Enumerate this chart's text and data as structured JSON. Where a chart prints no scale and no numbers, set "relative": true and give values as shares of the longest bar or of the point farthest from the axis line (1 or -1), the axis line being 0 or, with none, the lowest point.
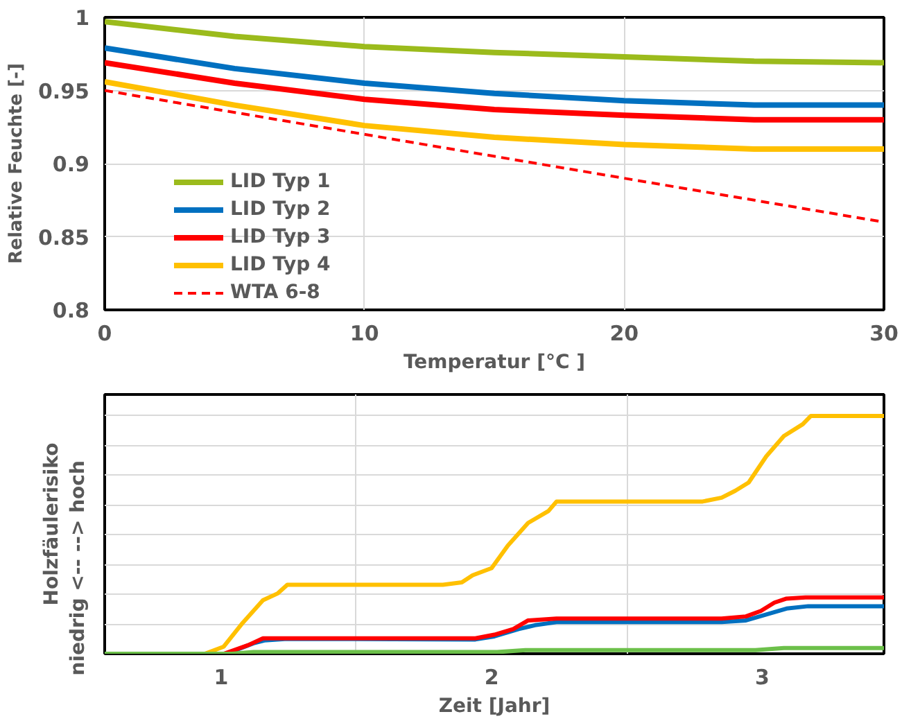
{
  "chart_data": [
    {
      "type": "line",
      "xlabel": "Temperatur [°C ]",
      "ylabel": "Relative Feuchte [-]",
      "xlim": [
        0,
        30
      ],
      "xticks": [
        0,
        10,
        20,
        30
      ],
      "ylim": [
        0.8,
        1
      ],
      "yticks": [
        0.8,
        0.85,
        0.9,
        0.95,
        1
      ],
      "grid": true,
      "legend": "bottom left",
      "x": [
        0,
        5,
        10,
        15,
        20,
        25,
        30
      ],
      "series": [
        {
          "name": "LID Typ 1",
          "color": "#9bbb1c",
          "values": [
            0.997,
            0.987,
            0.98,
            0.976,
            0.973,
            0.97,
            0.969
          ]
        },
        {
          "name": "LID Typ 2",
          "color": "#0070c0",
          "values": [
            0.979,
            0.965,
            0.955,
            0.948,
            0.943,
            0.94,
            0.94
          ]
        },
        {
          "name": "LID Typ 3",
          "color": "#ff0000",
          "values": [
            0.969,
            0.955,
            0.944,
            0.937,
            0.933,
            0.93,
            0.93
          ]
        },
        {
          "name": "LID Typ 4",
          "color": "#ffc000",
          "values": [
            0.956,
            0.94,
            0.926,
            0.918,
            0.913,
            0.91,
            0.91
          ]
        },
        {
          "name": "WTA 6-8",
          "color": "#ff0000",
          "line_style": "dashed",
          "x": [
            0,
            30
          ],
          "values": [
            0.95,
            0.86
          ]
        }
      ]
    },
    {
      "type": "line",
      "xlabel": "Zeit [Jahr]",
      "ylabel": "Holzfäulerisiko\nniedrig <--              --> hoch",
      "relative": true,
      "xlim": [
        0.57,
        3.45
      ],
      "xticks": [
        1,
        2,
        3
      ],
      "tick_labels": "x",
      "grid": true,
      "series": [
        {
          "color": "#ffc000",
          "x": [
            0.57,
            0.94,
            1.01,
            1.08,
            1.155,
            1.21,
            1.245,
            1.82,
            1.89,
            1.93,
            2.0,
            2.06,
            2.135,
            2.21,
            2.24,
            2.78,
            2.85,
            2.9,
            2.95,
            3.015,
            3.08,
            3.15,
            3.18,
            3.45
          ],
          "values": [
            0,
            0,
            0.03,
            0.13,
            0.225,
            0.254,
            0.29,
            0.29,
            0.3,
            0.33,
            0.36,
            0.455,
            0.55,
            0.6,
            0.64,
            0.64,
            0.656,
            0.685,
            0.72,
            0.83,
            0.915,
            0.965,
            1,
            1
          ]
        },
        {
          "color": "#0070c0",
          "x": [
            0.57,
            1.02,
            1.12,
            1.16,
            1.245,
            1.94,
            2.01,
            2.1,
            2.16,
            2.24,
            2.85,
            2.94,
            3.015,
            3.09,
            3.17,
            3.45
          ],
          "values": [
            0,
            0,
            0.044,
            0.056,
            0.063,
            0.06,
            0.073,
            0.104,
            0.12,
            0.133,
            0.133,
            0.14,
            0.165,
            0.19,
            0.2,
            0.2
          ]
        },
        {
          "color": "#ff0000",
          "x": [
            0.57,
            1.01,
            1.1,
            1.155,
            1.245,
            1.94,
            2.01,
            2.08,
            2.135,
            2.24,
            2.85,
            2.94,
            2.995,
            3.045,
            3.09,
            3.16,
            3.45
          ],
          "values": [
            0,
            0,
            0.036,
            0.065,
            0.065,
            0.065,
            0.08,
            0.104,
            0.14,
            0.148,
            0.148,
            0.157,
            0.18,
            0.215,
            0.232,
            0.237,
            0.237
          ]
        },
        {
          "color": "#6cc04a",
          "x": [
            0.57,
            1.04,
            1.12,
            2.02,
            2.125,
            2.975,
            3.08,
            3.45
          ],
          "values": [
            0,
            0,
            0.007,
            0.007,
            0.015,
            0.015,
            0.024,
            0.024
          ]
        }
      ]
    }
  ]
}
